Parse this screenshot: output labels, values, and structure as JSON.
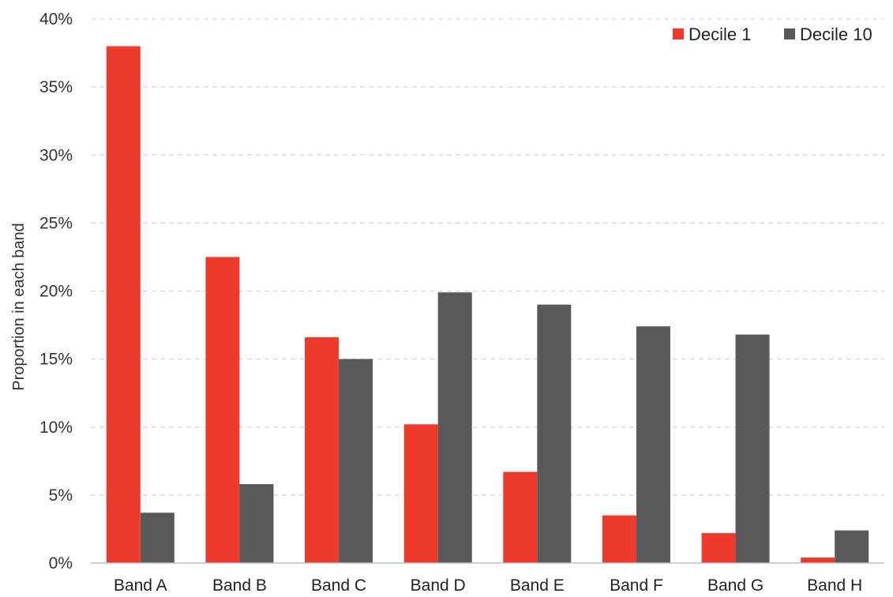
{
  "chart_data": {
    "type": "bar",
    "title": "",
    "xlabel": "",
    "ylabel": "Proportion in each band",
    "categories": [
      "Band A",
      "Band B",
      "Band C",
      "Band D",
      "Band E",
      "Band F",
      "Band G",
      "Band H"
    ],
    "series": [
      {
        "name": "Decile 1",
        "color": "#ee3a2c",
        "values": [
          38.0,
          22.5,
          16.6,
          10.2,
          6.7,
          3.5,
          2.2,
          0.4
        ]
      },
      {
        "name": "Decile 10",
        "color": "#595959",
        "values": [
          3.7,
          5.8,
          15.0,
          19.9,
          19.0,
          17.4,
          16.8,
          2.4
        ]
      }
    ],
    "ylim": [
      0,
      40
    ],
    "yticks": [
      "0%",
      "5%",
      "10%",
      "15%",
      "20%",
      "25%",
      "30%",
      "35%",
      "40%"
    ],
    "grid": true,
    "legend_position": "top-right"
  }
}
